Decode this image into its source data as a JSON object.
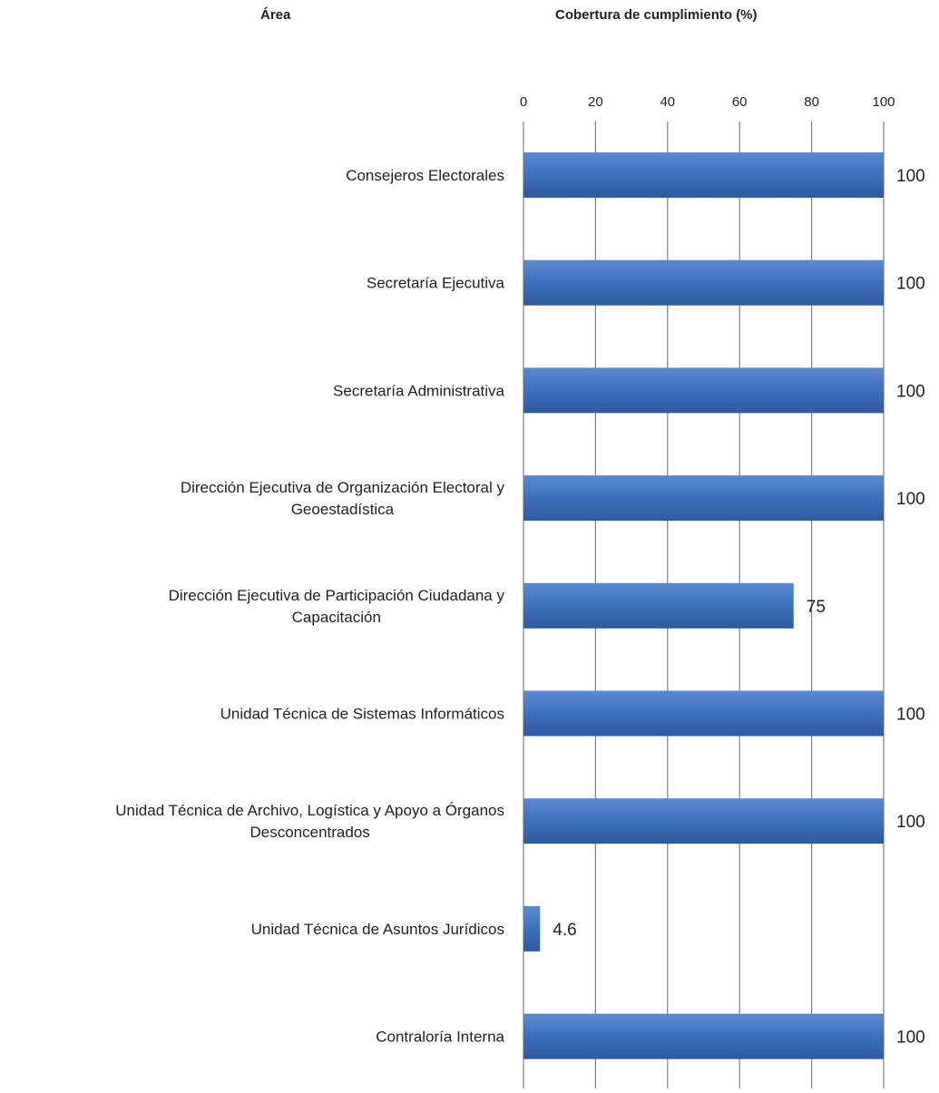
{
  "header": {
    "area": "Área",
    "coverage": "Cobertura de cumplimiento (%)"
  },
  "chart_data": {
    "type": "bar",
    "orientation": "horizontal",
    "title": "",
    "xlabel": "Cobertura de cumplimiento (%)",
    "ylabel": "Área",
    "xlim": [
      0,
      100
    ],
    "ticks": [
      0,
      20,
      40,
      60,
      80,
      100
    ],
    "grid": true,
    "bar_color": "#3F72BF",
    "categories": [
      [
        "Consejeros Electorales"
      ],
      [
        "Secretaría Ejecutiva"
      ],
      [
        "Secretaría Administrativa"
      ],
      [
        "Dirección Ejecutiva de Organización Electoral y",
        "Geoestadística"
      ],
      [
        "Dirección Ejecutiva de Participación Ciudadana y",
        "Capacitación"
      ],
      [
        "Unidad Técnica de Sistemas Informáticos"
      ],
      [
        "Unidad Técnica de Archivo, Logística y Apoyo a Órganos",
        "Desconcentrados"
      ],
      [
        "Unidad Técnica de Asuntos Jurídicos"
      ],
      [
        "Contraloría Interna"
      ]
    ],
    "values": [
      100,
      100,
      100,
      100,
      75,
      100,
      100,
      4.6,
      100
    ],
    "data_labels": [
      "100",
      "100",
      "100",
      "100",
      "75",
      "100",
      "100",
      "4.6",
      "100"
    ]
  }
}
